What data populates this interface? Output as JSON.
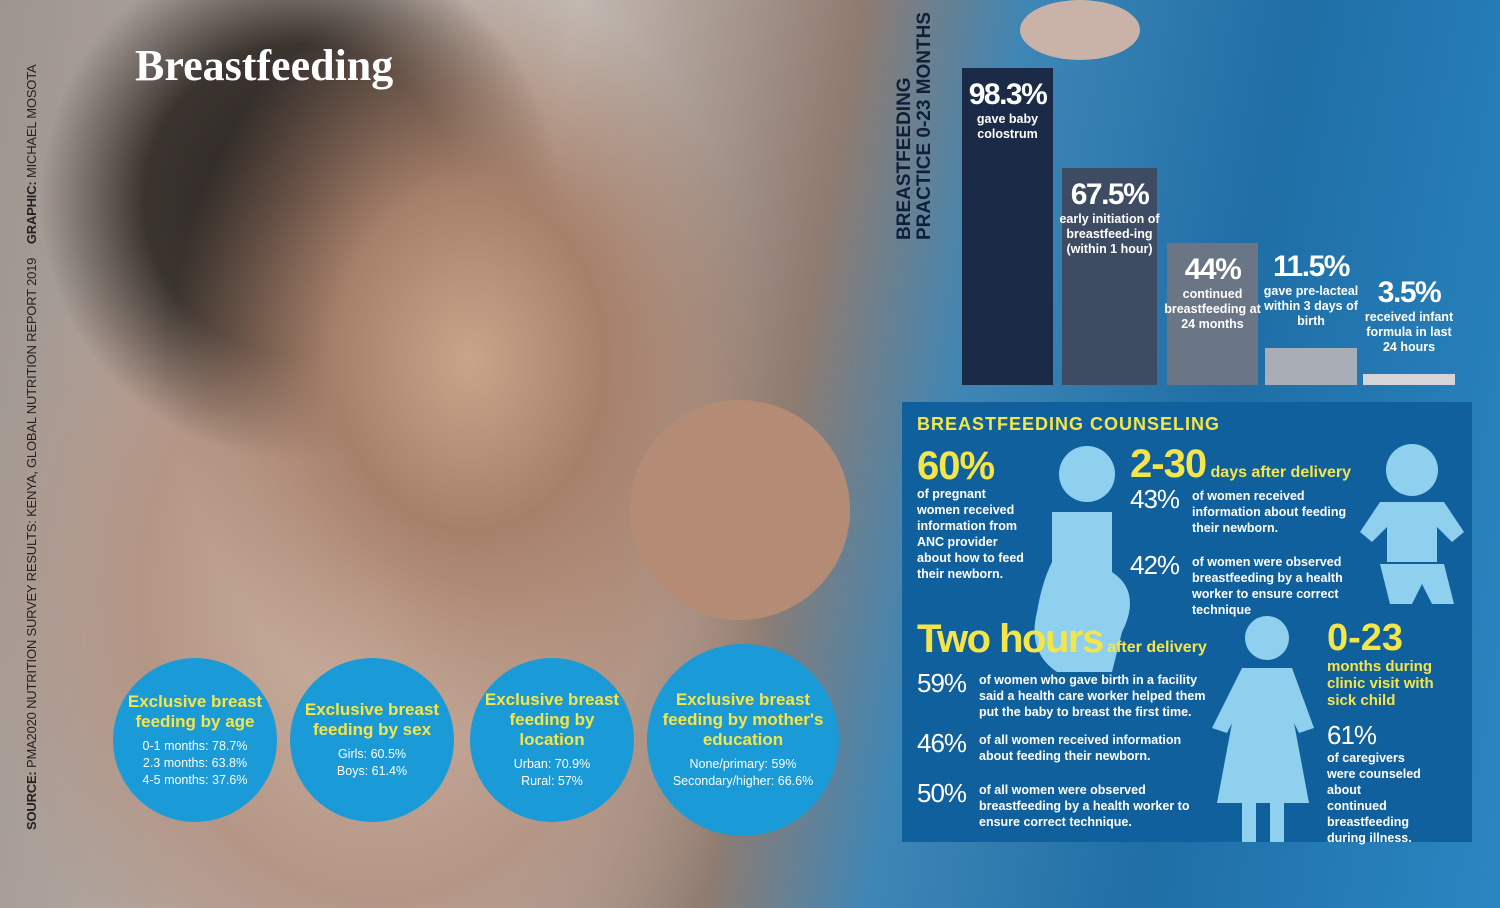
{
  "title": "Breastfeeding",
  "credit": {
    "source_label": "SOURCE:",
    "source": "PMA2020 NUTRITION SURVEY RESULTS: KENYA, GLOBAL NUTRITION REPORT 2019",
    "graphic_label": "GRAPHIC:",
    "graphic": "MICHAEL MOSOTA"
  },
  "practice": {
    "title_line1": "BREASTFEEDING",
    "title_line2": "PRACTICE 0-23 MONTHS",
    "ylim": [
      0,
      100
    ],
    "bars": [
      {
        "value": 98.3,
        "value_label": "98.3%",
        "text": "gave baby colostrum",
        "color": "#1b2a47"
      },
      {
        "value": 67.5,
        "value_label": "67.5%",
        "text": "early initiation of breastfeed-ing (within 1 hour)",
        "color": "#3e4c63"
      },
      {
        "value": 44,
        "value_label": "44%",
        "text": "continued breastfeeding at 24 months",
        "color": "#6a7586"
      },
      {
        "value": 11.5,
        "value_label": "11.5%",
        "text": "gave pre-lacteal within 3 days of birth",
        "color": "#a9aeb6"
      },
      {
        "value": 3.5,
        "value_label": "3.5%",
        "text": "received infant formula in last 24 hours",
        "color": "#d3d5d9"
      }
    ]
  },
  "circles": [
    {
      "title": "Exclusive breast feeding by age",
      "rows": [
        "0-1 months: 78.7%",
        "2.3 months: 63.8%",
        "4-5 months: 37.6%"
      ]
    },
    {
      "title": "Exclusive breast feeding by sex",
      "rows": [
        "Girls: 60.5%",
        "Boys: 61.4%"
      ]
    },
    {
      "title": "Exclusive breast feeding by location",
      "rows": [
        "Urban: 70.9%",
        "Rural: 57%"
      ]
    },
    {
      "title": "Exclusive breast feeding by mother's education",
      "rows": [
        "None/primary: 59%",
        "Secondary/higher: 66.6%"
      ]
    }
  ],
  "counseling": {
    "title": "BREASTFEEDING COUNSELING",
    "anc": {
      "stat": "60%",
      "text": "of pregnant women received information from ANC provider about how to feed their newborn."
    },
    "days": {
      "stat": "2-30",
      "suffix": "days after delivery",
      "items": [
        {
          "stat": "43%",
          "text": "of women received information about feeding their newborn."
        },
        {
          "stat": "42%",
          "text": "of women were observed breastfeeding by a health worker to ensure correct technique"
        }
      ]
    },
    "hours": {
      "stat": "Two hours",
      "suffix": "after delivery",
      "items": [
        {
          "stat": "59%",
          "text": "of women who gave birth in a facility said a health care worker helped them put the baby to breast the first time."
        },
        {
          "stat": "46%",
          "text": "of all women received information about feeding their newborn."
        },
        {
          "stat": "50%",
          "text": "of all women were observed breastfeeding by a health worker to ensure correct technique."
        }
      ]
    },
    "months": {
      "stat": "0-23",
      "suffix": "months during clinic visit with sick child",
      "item": {
        "stat": "61%",
        "text": "of caregivers were counseled about continued breastfeeding during illness."
      }
    }
  }
}
